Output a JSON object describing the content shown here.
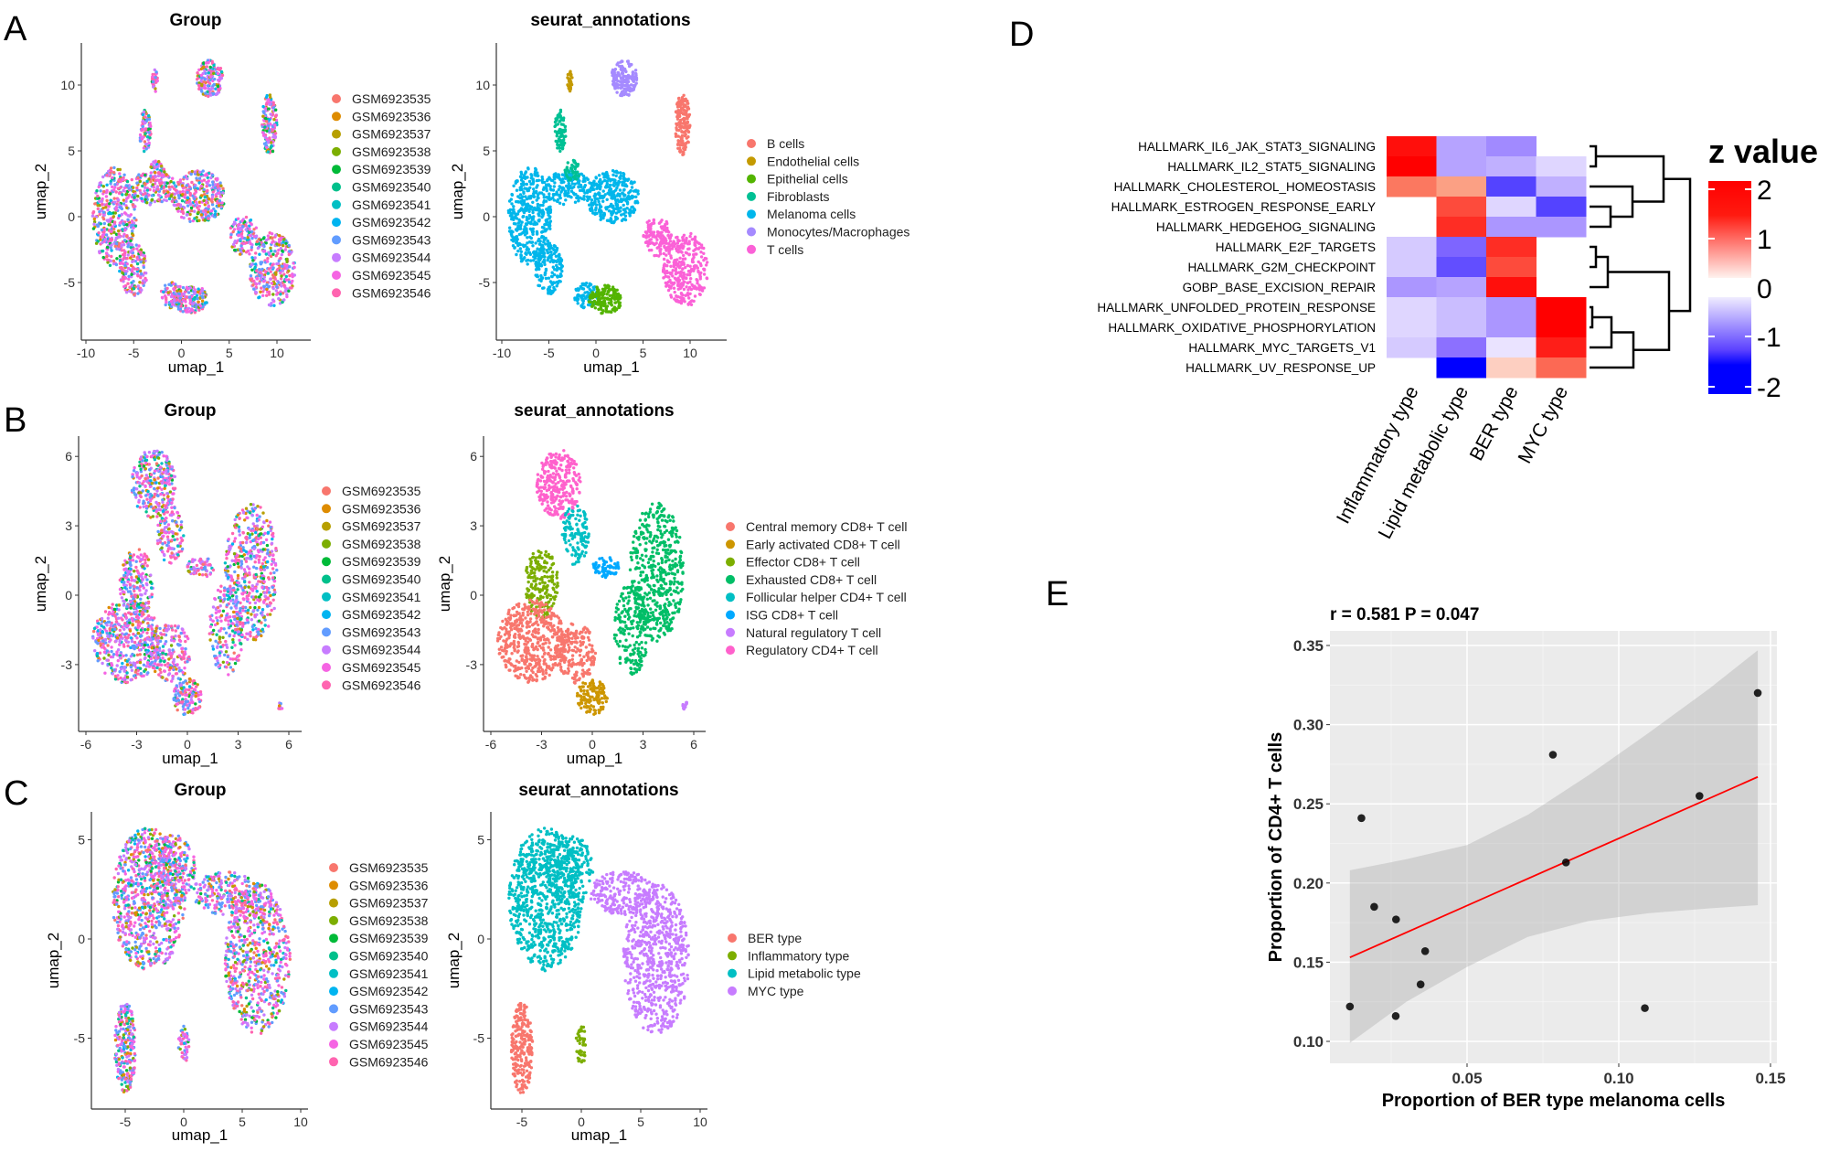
{
  "panel_labels": {
    "A": "A",
    "B": "B",
    "C": "C",
    "D": "D",
    "E": "E"
  },
  "chart_data": [
    {
      "id": "A-group",
      "type": "scatter",
      "panel": "A",
      "title": "Group",
      "xlabel": "umap_1",
      "ylabel": "umap_2",
      "xticks": [
        -10,
        -5,
        0,
        5,
        10
      ],
      "yticks": [
        -5,
        0,
        5,
        10
      ],
      "legend": [
        "GSM6923535",
        "GSM6923536",
        "GSM6923537",
        "GSM6923538",
        "GSM6923539",
        "GSM6923540",
        "GSM6923541",
        "GSM6923542",
        "GSM6923543",
        "GSM6923544",
        "GSM6923545",
        "GSM6923546"
      ],
      "colors": [
        "#F8766D",
        "#DE8C00",
        "#B79F00",
        "#7CAE00",
        "#00BA38",
        "#00C08B",
        "#00BFC4",
        "#00B4F0",
        "#619CFF",
        "#C77CFF",
        "#F564E3",
        "#FF64B0"
      ]
    },
    {
      "id": "A-annot",
      "type": "scatter",
      "panel": "A",
      "title": "seurat_annotations",
      "xlabel": "umap_1",
      "ylabel": "umap_2",
      "xticks": [
        -10,
        -5,
        0,
        5,
        10
      ],
      "yticks": [
        -5,
        0,
        5,
        10
      ],
      "legend": [
        "B cells",
        "Endothelial cells",
        "Epithelial cells",
        "Fibroblasts",
        "Melanoma cells",
        "Monocytes/Macrophages",
        "T cells"
      ],
      "colors": [
        "#F8766D",
        "#C49A00",
        "#53B400",
        "#00C094",
        "#00B6EB",
        "#A58AFF",
        "#FB61D7"
      ]
    },
    {
      "id": "B-group",
      "type": "scatter",
      "panel": "B",
      "title": "Group",
      "xlabel": "umap_1",
      "ylabel": "umap_2",
      "xticks": [
        -6,
        -3,
        0,
        3,
        6
      ],
      "yticks": [
        -3,
        0,
        3,
        6
      ],
      "legend": [
        "GSM6923535",
        "GSM6923536",
        "GSM6923537",
        "GSM6923538",
        "GSM6923539",
        "GSM6923540",
        "GSM6923541",
        "GSM6923542",
        "GSM6923543",
        "GSM6923544",
        "GSM6923545",
        "GSM6923546"
      ],
      "colors": [
        "#F8766D",
        "#DE8C00",
        "#B79F00",
        "#7CAE00",
        "#00BA38",
        "#00C08B",
        "#00BFC4",
        "#00B4F0",
        "#619CFF",
        "#C77CFF",
        "#F564E3",
        "#FF64B0"
      ]
    },
    {
      "id": "B-annot",
      "type": "scatter",
      "panel": "B",
      "title": "seurat_annotations",
      "xlabel": "umap_1",
      "ylabel": "umap_2",
      "xticks": [
        -6,
        -3,
        0,
        3,
        6
      ],
      "yticks": [
        -3,
        0,
        3,
        6
      ],
      "legend": [
        "Central memory CD8+ T cell",
        "Early activated CD8+ T cell",
        "Effector CD8+ T cell",
        "Exhausted CD8+ T cell",
        "Follicular helper CD4+ T cell",
        "ISG CD8+ T cell",
        "Natural regulatory T cell",
        "Regulatory CD4+ T cell"
      ],
      "colors": [
        "#F8766D",
        "#CD9600",
        "#7CAE00",
        "#00BE67",
        "#00BFC4",
        "#00A9FF",
        "#C77CFF",
        "#FF61CC"
      ]
    },
    {
      "id": "C-group",
      "type": "scatter",
      "panel": "C",
      "title": "Group",
      "xlabel": "umap_1",
      "ylabel": "umap_2",
      "xticks": [
        -5,
        0,
        5,
        10
      ],
      "yticks": [
        -5,
        0,
        5
      ],
      "legend": [
        "GSM6923535",
        "GSM6923536",
        "GSM6923537",
        "GSM6923538",
        "GSM6923539",
        "GSM6923540",
        "GSM6923541",
        "GSM6923542",
        "GSM6923543",
        "GSM6923544",
        "GSM6923545",
        "GSM6923546"
      ],
      "colors": [
        "#F8766D",
        "#DE8C00",
        "#B79F00",
        "#7CAE00",
        "#00BA38",
        "#00C08B",
        "#00BFC4",
        "#00B4F0",
        "#619CFF",
        "#C77CFF",
        "#F564E3",
        "#FF64B0"
      ]
    },
    {
      "id": "C-annot",
      "type": "scatter",
      "panel": "C",
      "title": "seurat_annotations",
      "xlabel": "umap_1",
      "ylabel": "umap_2",
      "xticks": [
        -5,
        0,
        5,
        10
      ],
      "yticks": [
        -5,
        0,
        5
      ],
      "legend": [
        "BER type",
        "Inflammatory type",
        "Lipid metabolic type",
        "MYC type"
      ],
      "colors": [
        "#F8766D",
        "#7CAE00",
        "#00BFC4",
        "#C77CFF"
      ]
    },
    {
      "id": "D-heatmap",
      "type": "heatmap",
      "panel": "D",
      "rows": [
        "HALLMARK_IL6_JAK_STAT3_SIGNALING",
        "HALLMARK_IL2_STAT5_SIGNALING",
        "HALLMARK_CHOLESTEROL_HOMEOSTASIS",
        "HALLMARK_ESTROGEN_RESPONSE_EARLY",
        "HALLMARK_HEDGEHOG_SIGNALING",
        "HALLMARK_E2F_TARGETS",
        "HALLMARK_G2M_CHECKPOINT",
        "GOBP_BASE_EXCISION_REPAIR",
        "HALLMARK_UNFOLDED_PROTEIN_RESPONSE",
        "HALLMARK_OXIDATIVE_PHOSPHORYLATION",
        "HALLMARK_MYC_TARGETS_V1",
        "HALLMARK_UV_RESPONSE_UP"
      ],
      "columns": [
        "Inflammatory type",
        "Lipid metabolic type",
        "BER type",
        "MYC type"
      ],
      "values": [
        [
          1.9,
          -0.6,
          -0.8,
          null
        ],
        [
          2.0,
          -0.6,
          -0.5,
          -0.2
        ],
        [
          1.2,
          0.9,
          -1.4,
          -0.5
        ],
        [
          null,
          1.5,
          -0.2,
          -1.4
        ],
        [
          null,
          1.7,
          -0.7,
          -0.7
        ],
        [
          -0.3,
          -1.1,
          1.7,
          null
        ],
        [
          -0.3,
          -1.3,
          1.5,
          null
        ],
        [
          -0.7,
          -0.6,
          1.9,
          null
        ],
        [
          -0.2,
          -0.4,
          -0.7,
          2.0
        ],
        [
          -0.2,
          -0.4,
          -0.7,
          2.0
        ],
        [
          -0.3,
          -1.0,
          -0.1,
          1.8
        ],
        [
          null,
          -2.0,
          0.4,
          1.3
        ]
      ],
      "legend_title": "z value",
      "legend_ticks": [
        "2",
        "1",
        "0",
        "-1",
        "-2"
      ],
      "color_scale": {
        "low": "#0000FF",
        "mid": "#FFFFFF",
        "high": "#FF0000"
      },
      "row_dendrogram": true
    },
    {
      "id": "E-scatter",
      "type": "scatter",
      "panel": "E",
      "title": "r = 0.581 P = 0.047",
      "xlabel": "Proportion of BER type melanoma cells",
      "ylabel": "Proportion of CD4+ T cells",
      "xticks": [
        "0.05",
        "0.10",
        "0.15"
      ],
      "yticks": [
        "0.10",
        "0.15",
        "0.20",
        "0.25",
        "0.30",
        "0.35"
      ],
      "grid": true,
      "points": [
        {
          "x": 0.0114,
          "y": 0.122
        },
        {
          "x": 0.0152,
          "y": 0.241
        },
        {
          "x": 0.0194,
          "y": 0.185
        },
        {
          "x": 0.0266,
          "y": 0.177
        },
        {
          "x": 0.0265,
          "y": 0.116
        },
        {
          "x": 0.0362,
          "y": 0.157
        },
        {
          "x": 0.0347,
          "y": 0.136
        },
        {
          "x": 0.0783,
          "y": 0.281
        },
        {
          "x": 0.0826,
          "y": 0.213
        },
        {
          "x": 0.1086,
          "y": 0.121
        },
        {
          "x": 0.1266,
          "y": 0.255
        },
        {
          "x": 0.1458,
          "y": 0.32
        }
      ],
      "fit_line": {
        "x": [
          0.0114,
          0.1458
        ],
        "y": [
          0.153,
          0.267
        ],
        "color": "#FF0000"
      },
      "confidence_band": {
        "x": [
          0.0114,
          0.03,
          0.05,
          0.07,
          0.09,
          0.11,
          0.13,
          0.1458
        ],
        "upper": [
          0.208,
          0.215,
          0.224,
          0.243,
          0.268,
          0.295,
          0.323,
          0.347
        ],
        "lower": [
          0.099,
          0.125,
          0.147,
          0.166,
          0.176,
          0.181,
          0.184,
          0.186
        ]
      }
    }
  ]
}
